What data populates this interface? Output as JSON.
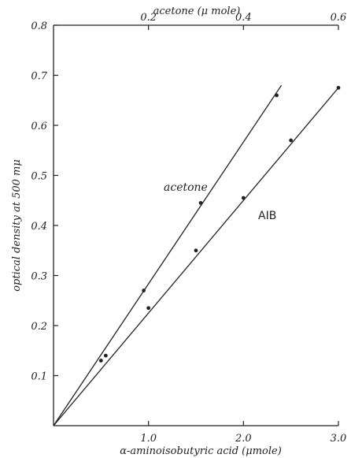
{
  "chart_data": {
    "type": "line",
    "title": "",
    "xlabel": "α-aminoisobutyric acid (μmole)",
    "x2label": "acetone (μ mole)",
    "ylabel": "optical density at 500 mμ",
    "xlim": [
      0,
      3.0
    ],
    "x2lim": [
      0,
      0.6
    ],
    "ylim": [
      0,
      0.8
    ],
    "grid": false,
    "x_ticks": [
      {
        "value": 1.0,
        "label": "1.0"
      },
      {
        "value": 2.0,
        "label": "2.0"
      },
      {
        "value": 3.0,
        "label": "3.0"
      }
    ],
    "x2_ticks": [
      {
        "value": 0.2,
        "label": "0.2"
      },
      {
        "value": 0.4,
        "label": "0.4"
      },
      {
        "value": 0.6,
        "label": "0.6"
      }
    ],
    "y_ticks": [
      {
        "value": 0.1,
        "label": "0.1"
      },
      {
        "value": 0.2,
        "label": "0.2"
      },
      {
        "value": 0.3,
        "label": "0.3"
      },
      {
        "value": 0.4,
        "label": "0.4"
      },
      {
        "value": 0.5,
        "label": "0.5"
      },
      {
        "value": 0.6,
        "label": "0.6"
      },
      {
        "value": 0.7,
        "label": "0.7"
      },
      {
        "value": 0.8,
        "label": "0.8"
      }
    ],
    "series": [
      {
        "name": "acetone",
        "axis": "top",
        "points": [
          {
            "x": 0.11,
            "y": 0.14
          },
          {
            "x": 0.19,
            "y": 0.27
          },
          {
            "x": 0.31,
            "y": 0.445
          },
          {
            "x": 0.47,
            "y": 0.66
          }
        ],
        "fit_end": {
          "x": 0.48,
          "y": 0.68
        }
      },
      {
        "name": "AIB",
        "axis": "bottom",
        "points": [
          {
            "x": 0.5,
            "y": 0.13
          },
          {
            "x": 1.0,
            "y": 0.235
          },
          {
            "x": 1.5,
            "y": 0.35
          },
          {
            "x": 2.0,
            "y": 0.455
          },
          {
            "x": 2.5,
            "y": 0.57
          },
          {
            "x": 3.0,
            "y": 0.675
          }
        ],
        "fit_end": {
          "x": 3.0,
          "y": 0.675
        }
      }
    ],
    "line_color": "#222222"
  }
}
